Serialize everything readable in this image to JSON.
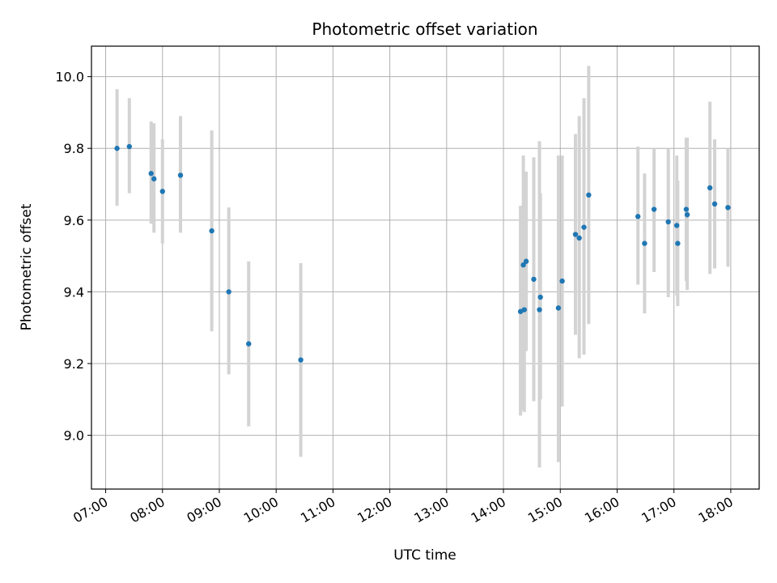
{
  "chart_data": {
    "type": "scatter",
    "title": "Photometric offset variation",
    "xlabel": "UTC time",
    "ylabel": "Photometric offset",
    "x_axis_type": "time",
    "xlim": [
      "06:45",
      "18:30"
    ],
    "ylim": [
      8.85,
      10.085
    ],
    "x_ticks": [
      "07:00",
      "08:00",
      "09:00",
      "10:00",
      "11:00",
      "12:00",
      "13:00",
      "14:00",
      "15:00",
      "16:00",
      "17:00",
      "18:00"
    ],
    "y_ticks": [
      "9.0",
      "9.2",
      "9.4",
      "9.6",
      "9.8",
      "10.0"
    ],
    "grid": true,
    "marker_color": "#1f77b4",
    "errorbar_color": "#d3d3d3",
    "points": [
      {
        "x": "07:12",
        "y": 9.8,
        "ylow": 9.64,
        "yhigh": 9.965
      },
      {
        "x": "07:25",
        "y": 9.805,
        "ylow": 9.675,
        "yhigh": 9.94
      },
      {
        "x": "07:48",
        "y": 9.73,
        "ylow": 9.59,
        "yhigh": 9.875
      },
      {
        "x": "07:51",
        "y": 9.715,
        "ylow": 9.565,
        "yhigh": 9.87
      },
      {
        "x": "08:00",
        "y": 9.68,
        "ylow": 9.535,
        "yhigh": 9.825
      },
      {
        "x": "08:19",
        "y": 9.725,
        "ylow": 9.565,
        "yhigh": 9.89
      },
      {
        "x": "08:52",
        "y": 9.57,
        "ylow": 9.29,
        "yhigh": 9.85
      },
      {
        "x": "09:10",
        "y": 9.4,
        "ylow": 9.17,
        "yhigh": 9.635
      },
      {
        "x": "09:31",
        "y": 9.255,
        "ylow": 9.025,
        "yhigh": 9.485
      },
      {
        "x": "10:26",
        "y": 9.21,
        "ylow": 8.94,
        "yhigh": 9.48
      },
      {
        "x": "14:18",
        "y": 9.345,
        "ylow": 9.055,
        "yhigh": 9.64
      },
      {
        "x": "14:21",
        "y": 9.475,
        "ylow": 9.07,
        "yhigh": 9.78
      },
      {
        "x": "14:22",
        "y": 9.35,
        "ylow": 9.065,
        "yhigh": 9.635
      },
      {
        "x": "14:24",
        "y": 9.485,
        "ylow": 9.235,
        "yhigh": 9.735
      },
      {
        "x": "14:32",
        "y": 9.435,
        "ylow": 9.095,
        "yhigh": 9.775
      },
      {
        "x": "14:38",
        "y": 9.35,
        "ylow": 8.91,
        "yhigh": 9.82
      },
      {
        "x": "14:39",
        "y": 9.385,
        "ylow": 9.1,
        "yhigh": 9.675
      },
      {
        "x": "14:58",
        "y": 9.355,
        "ylow": 8.925,
        "yhigh": 9.78
      },
      {
        "x": "15:02",
        "y": 9.43,
        "ylow": 9.08,
        "yhigh": 9.78
      },
      {
        "x": "15:16",
        "y": 9.56,
        "ylow": 9.28,
        "yhigh": 9.84
      },
      {
        "x": "15:20",
        "y": 9.55,
        "ylow": 9.215,
        "yhigh": 9.89
      },
      {
        "x": "15:25",
        "y": 9.58,
        "ylow": 9.225,
        "yhigh": 9.94
      },
      {
        "x": "15:30",
        "y": 9.67,
        "ylow": 9.31,
        "yhigh": 10.03
      },
      {
        "x": "16:22",
        "y": 9.61,
        "ylow": 9.42,
        "yhigh": 9.805
      },
      {
        "x": "16:29",
        "y": 9.535,
        "ylow": 9.34,
        "yhigh": 9.73
      },
      {
        "x": "16:39",
        "y": 9.63,
        "ylow": 9.455,
        "yhigh": 9.8
      },
      {
        "x": "16:54",
        "y": 9.595,
        "ylow": 9.385,
        "yhigh": 9.8
      },
      {
        "x": "17:03",
        "y": 9.585,
        "ylow": 9.39,
        "yhigh": 9.78
      },
      {
        "x": "17:04",
        "y": 9.535,
        "ylow": 9.36,
        "yhigh": 9.71
      },
      {
        "x": "17:13",
        "y": 9.63,
        "ylow": 9.43,
        "yhigh": 9.83
      },
      {
        "x": "17:14",
        "y": 9.615,
        "ylow": 9.405,
        "yhigh": 9.83
      },
      {
        "x": "17:38",
        "y": 9.69,
        "ylow": 9.45,
        "yhigh": 9.93
      },
      {
        "x": "17:43",
        "y": 9.645,
        "ylow": 9.465,
        "yhigh": 9.825
      },
      {
        "x": "17:57",
        "y": 9.635,
        "ylow": 9.47,
        "yhigh": 9.8
      }
    ]
  }
}
